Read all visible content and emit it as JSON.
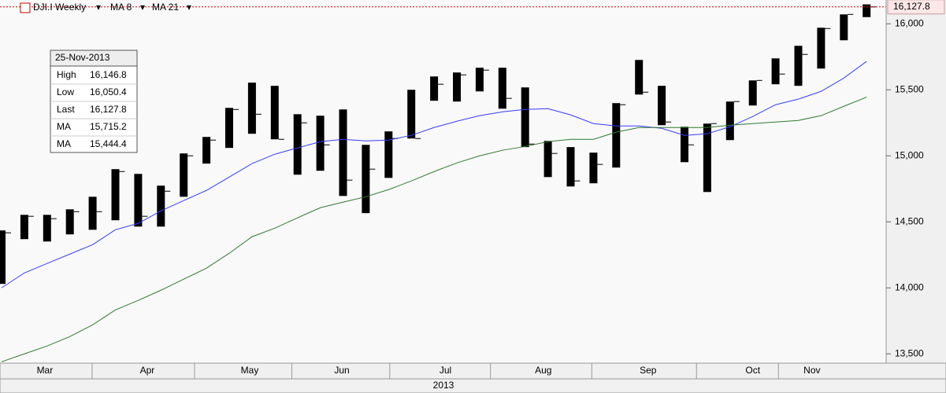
{
  "chart_data": {
    "type": "ohlc",
    "ylim": [
      13430,
      16180
    ],
    "yticks": [
      {
        "value": 13500,
        "label": "13,500"
      },
      {
        "value": 14000,
        "label": "14,000"
      },
      {
        "value": 14500,
        "label": "14,500"
      },
      {
        "value": 15000,
        "label": "15,000"
      },
      {
        "value": 15500,
        "label": "15,500"
      },
      {
        "value": 16000,
        "label": "16,000"
      }
    ],
    "xticks": [
      {
        "value": 1.9,
        "label": "Mar"
      },
      {
        "value": 6.4,
        "label": "Apr"
      },
      {
        "value": 10.9,
        "label": "May"
      },
      {
        "value": 14.95,
        "label": "Jun"
      },
      {
        "value": 19.5,
        "label": "Jul"
      },
      {
        "value": 23.8,
        "label": "Aug"
      },
      {
        "value": 28.4,
        "label": "Sep"
      },
      {
        "value": 33.0,
        "label": "Oct"
      },
      {
        "value": 35.6,
        "label": "Nov"
      }
    ],
    "x_label": "2013",
    "last_price": {
      "value": 16127.8,
      "label": "16,127.8"
    },
    "series": [
      {
        "name": "DJI.I Weekly",
        "color": "#000000",
        "high": [
          14435,
          14553,
          14553,
          14595,
          14690,
          14899,
          14863,
          14774,
          15018,
          15143,
          15363,
          15554,
          15530,
          15315,
          15304,
          15351,
          15083,
          15185,
          15500,
          15601,
          15631,
          15667,
          15667,
          15518,
          15113,
          15066,
          15024,
          15399,
          15726,
          15530,
          15220,
          15244,
          15411,
          15571,
          15738,
          15833,
          15970,
          16071,
          16146.8
        ],
        "low": [
          14030,
          14369,
          14351,
          14405,
          14440,
          14512,
          14464,
          14464,
          14690,
          14941,
          15060,
          15167,
          15125,
          14857,
          14887,
          14696,
          14566,
          14833,
          15131,
          15417,
          15411,
          15488,
          15357,
          15066,
          14839,
          14768,
          14792,
          14911,
          15464,
          15232,
          14952,
          14726,
          15119,
          15381,
          15542,
          15530,
          15661,
          15875,
          16050.4
        ],
        "close": [
          14417,
          14542,
          14524,
          14577,
          14577,
          14881,
          14542,
          14732,
          15000,
          15119,
          15351,
          15315,
          15125,
          15250,
          15083,
          14816,
          14899,
          15131,
          15131,
          15542,
          15613,
          15649,
          15435,
          15089,
          15018,
          14810,
          14935,
          15387,
          15482,
          15256,
          15083,
          15244,
          15411,
          15571,
          15619,
          15768,
          15964,
          16071,
          16127.8
        ]
      },
      {
        "name": "MA 8",
        "color": "#3a3aff",
        "values": [
          14000,
          14113,
          14185,
          14256,
          14327,
          14440,
          14488,
          14583,
          14661,
          14738,
          14839,
          14941,
          15012,
          15060,
          15107,
          15125,
          15113,
          15119,
          15155,
          15214,
          15262,
          15304,
          15333,
          15351,
          15357,
          15310,
          15244,
          15226,
          15226,
          15208,
          15155,
          15167,
          15220,
          15298,
          15387,
          15429,
          15488,
          15589,
          15715.2
        ]
      },
      {
        "name": "MA 21",
        "color": "#2f7a2f",
        "values": [
          13440,
          13500,
          13560,
          13631,
          13720,
          13833,
          13905,
          13982,
          14066,
          14149,
          14262,
          14387,
          14452,
          14530,
          14607,
          14649,
          14690,
          14744,
          14810,
          14881,
          14946,
          15000,
          15042,
          15071,
          15107,
          15125,
          15125,
          15179,
          15214,
          15214,
          15214,
          15214,
          15232,
          15244,
          15256,
          15268,
          15304,
          15375,
          15444.4
        ]
      }
    ],
    "info_box": {
      "date": "25-Nov-2013",
      "rows": [
        {
          "name": "High",
          "value": "16,146.8"
        },
        {
          "name": "Low",
          "value": "16,050.4"
        },
        {
          "name": "Last",
          "value": "16,127.8"
        },
        {
          "name": "MA",
          "value": "15,715.2"
        },
        {
          "name": "MA",
          "value": "15,444.4"
        }
      ]
    }
  }
}
